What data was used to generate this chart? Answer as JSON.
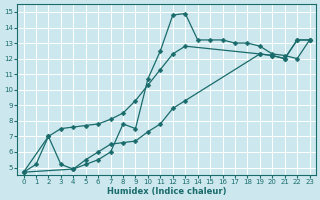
{
  "xlabel": "Humidex (Indice chaleur)",
  "bg_color": "#cce8ee",
  "grid_color": "#ffffff",
  "line_color": "#1a6b6b",
  "xlim": [
    -0.5,
    23.5
  ],
  "ylim": [
    4.5,
    15.5
  ],
  "xticks": [
    0,
    1,
    2,
    3,
    4,
    5,
    6,
    7,
    8,
    9,
    10,
    11,
    12,
    13,
    14,
    15,
    16,
    17,
    18,
    19,
    20,
    21,
    22,
    23
  ],
  "yticks": [
    5,
    6,
    7,
    8,
    9,
    10,
    11,
    12,
    13,
    14,
    15
  ],
  "line1_x": [
    0,
    1,
    2,
    3,
    4,
    5,
    6,
    7,
    8,
    9,
    10,
    11,
    12,
    13,
    14,
    15,
    16,
    17,
    18,
    19,
    20,
    21,
    22,
    23
  ],
  "line1_y": [
    4.7,
    5.2,
    7.0,
    5.2,
    4.9,
    5.2,
    5.5,
    6.0,
    7.8,
    7.5,
    10.7,
    12.5,
    14.8,
    14.9,
    13.2,
    13.2,
    13.2,
    13.0,
    13.0,
    12.8,
    12.3,
    12.2,
    12.0,
    13.2
  ],
  "line2_x": [
    0,
    2,
    3,
    4,
    5,
    6,
    7,
    8,
    9,
    10,
    11,
    12,
    13,
    19,
    20,
    21,
    22,
    23
  ],
  "line2_y": [
    4.7,
    7.0,
    7.5,
    7.6,
    7.7,
    7.8,
    8.1,
    8.5,
    9.3,
    10.3,
    11.3,
    12.3,
    12.8,
    12.3,
    12.2,
    12.0,
    13.2,
    13.2
  ],
  "line3_x": [
    0,
    4,
    5,
    6,
    7,
    8,
    9,
    10,
    11,
    12,
    13,
    19,
    20,
    21,
    22,
    23
  ],
  "line3_y": [
    4.7,
    4.9,
    5.5,
    6.0,
    6.5,
    6.6,
    6.7,
    7.3,
    7.8,
    8.8,
    9.3,
    12.3,
    12.2,
    12.0,
    13.2,
    13.2
  ]
}
